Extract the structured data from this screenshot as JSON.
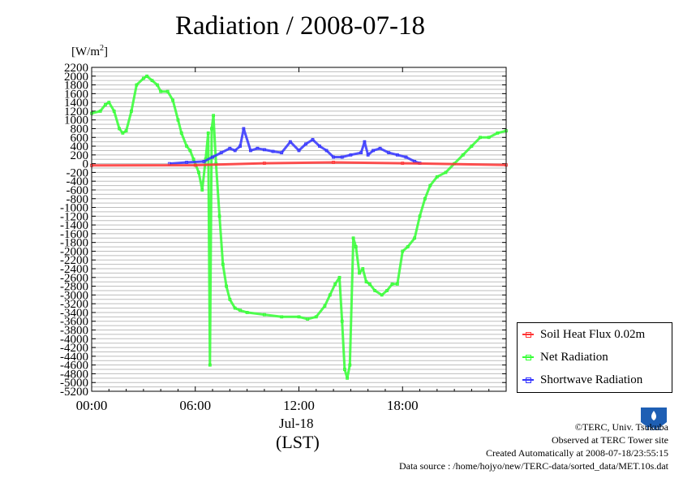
{
  "title": "Radiation / 2008-07-18",
  "unit": {
    "prefix": "[W/m",
    "sup": "2",
    "suffix": "]"
  },
  "xaxis": {
    "date_label": "Jul-18",
    "zone_label": "(LST)"
  },
  "legend": {
    "items": [
      {
        "label": "Soil Heat Flux 0.02m",
        "color": "#ff3333"
      },
      {
        "label": "Net Radiation",
        "color": "#33ff33"
      },
      {
        "label": "Shortwave Radiation",
        "color": "#3333ff"
      }
    ]
  },
  "credits": {
    "copyright": "©TERC, Univ. Tsukuba",
    "observed": "Observed at TERC Tower site",
    "created": "Created Automatically at 2008-07-18/23:55:15",
    "source": "Data source : /home/hojyo/new/TERC-data/sorted_data/MET.10s.dat"
  },
  "logo": {
    "label": "TERC",
    "icon": "terc-logo-icon",
    "color": "#1e5fb4"
  },
  "chart_data": {
    "type": "line",
    "title": "Radiation / 2008-07-18",
    "ylabel": "[W/m2]",
    "xlabel": "Jul-18 (LST)",
    "xlim": [
      0,
      24
    ],
    "ylim": [
      -5200,
      2200
    ],
    "xticks": [
      0,
      6,
      12,
      18
    ],
    "xtick_labels": [
      "00:00",
      "06:00",
      "12:00",
      "18:00"
    ],
    "yticks": [
      2200,
      2000,
      1800,
      1600,
      1400,
      1200,
      1000,
      800,
      600,
      400,
      200,
      0,
      -200,
      -400,
      -600,
      -800,
      -1000,
      -1200,
      -1400,
      -1600,
      -1800,
      -2000,
      -2200,
      -2400,
      -2600,
      -2800,
      -3000,
      -3200,
      -3400,
      -3600,
      -3800,
      -4000,
      -4200,
      -4400,
      -4600,
      -4800,
      -5000,
      -5200
    ],
    "grid": true,
    "legend_position": "lower-right outside",
    "series": [
      {
        "name": "Soil Heat Flux 0.02m",
        "color": "#ff3333",
        "x": [
          0,
          6,
          10,
          14,
          18,
          24
        ],
        "y": [
          -40,
          -35,
          10,
          30,
          10,
          -30
        ]
      },
      {
        "name": "Net Radiation",
        "color": "#33ff33",
        "x": [
          0,
          0.5,
          0.8,
          1.0,
          1.3,
          1.6,
          1.8,
          2.0,
          2.3,
          2.6,
          3.0,
          3.2,
          3.5,
          3.8,
          4.0,
          4.4,
          4.7,
          5.0,
          5.2,
          5.5,
          5.7,
          5.9,
          6.2,
          6.4,
          6.6,
          6.75,
          6.85,
          6.95,
          7.05,
          7.2,
          7.4,
          7.6,
          7.8,
          8.0,
          8.3,
          8.6,
          9.0,
          10.0,
          11.0,
          12.0,
          12.5,
          13.0,
          13.5,
          13.8,
          14.1,
          14.35,
          14.5,
          14.65,
          14.8,
          14.95,
          15.15,
          15.3,
          15.5,
          15.7,
          15.9,
          16.1,
          16.4,
          16.8,
          17.1,
          17.4,
          17.7,
          18.0,
          18.3,
          18.7,
          19.0,
          19.3,
          19.6,
          20.0,
          20.5,
          21.0,
          21.5,
          22.0,
          22.5,
          23.0,
          23.5,
          24.0
        ],
        "y": [
          1150,
          1200,
          1350,
          1400,
          1200,
          800,
          700,
          750,
          1200,
          1800,
          1950,
          2000,
          1900,
          1800,
          1650,
          1650,
          1450,
          1000,
          700,
          400,
          300,
          100,
          -200,
          -600,
          100,
          700,
          -4600,
          800,
          1100,
          0,
          -1200,
          -2300,
          -2800,
          -3100,
          -3300,
          -3350,
          -3400,
          -3450,
          -3500,
          -3500,
          -3550,
          -3500,
          -3250,
          -3000,
          -2750,
          -2600,
          -3600,
          -4700,
          -4900,
          -4600,
          -1700,
          -1900,
          -2500,
          -2400,
          -2700,
          -2750,
          -2900,
          -3000,
          -2900,
          -2750,
          -2750,
          -2000,
          -1900,
          -1700,
          -1200,
          -800,
          -500,
          -300,
          -200,
          0,
          200,
          400,
          600,
          600,
          700,
          750
        ]
      },
      {
        "name": "Shortwave Radiation",
        "color": "#3333ff",
        "x": [
          4.5,
          5.5,
          6.5,
          7.0,
          7.5,
          8.0,
          8.3,
          8.6,
          8.8,
          9.2,
          9.6,
          10.0,
          10.5,
          11.0,
          11.5,
          12.0,
          12.4,
          12.8,
          13.2,
          13.6,
          14.0,
          14.5,
          15.0,
          15.6,
          15.8,
          16.0,
          16.3,
          16.7,
          17.2,
          17.7,
          18.2,
          18.7,
          19.0
        ],
        "y": [
          0,
          30,
          50,
          150,
          250,
          350,
          300,
          400,
          800,
          300,
          350,
          320,
          280,
          250,
          500,
          300,
          450,
          550,
          400,
          300,
          150,
          150,
          200,
          250,
          500,
          200,
          300,
          350,
          250,
          200,
          150,
          50,
          10
        ]
      }
    ]
  }
}
